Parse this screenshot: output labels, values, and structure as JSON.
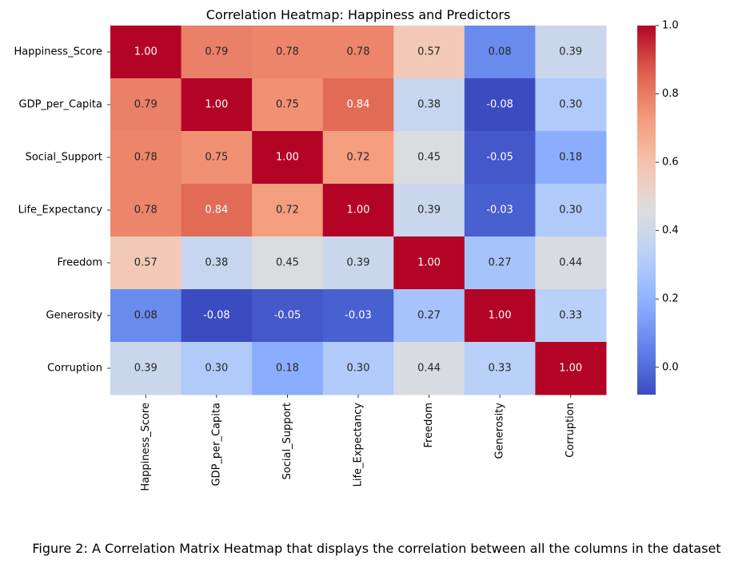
{
  "chart_data": {
    "type": "heatmap",
    "title": "Correlation Heatmap: Happiness and Predictors",
    "rows": [
      "Happiness_Score",
      "GDP_per_Capita",
      "Social_Support",
      "Life_Expectancy",
      "Freedom",
      "Generosity",
      "Corruption"
    ],
    "columns": [
      "Happiness_Score",
      "GDP_per_Capita",
      "Social_Support",
      "Life_Expectancy",
      "Freedom",
      "Generosity",
      "Corruption"
    ],
    "values": [
      [
        1.0,
        0.79,
        0.78,
        0.78,
        0.57,
        0.08,
        0.39
      ],
      [
        0.79,
        1.0,
        0.75,
        0.84,
        0.38,
        -0.08,
        0.3
      ],
      [
        0.78,
        0.75,
        1.0,
        0.72,
        0.45,
        -0.05,
        0.18
      ],
      [
        0.78,
        0.84,
        0.72,
        1.0,
        0.39,
        -0.03,
        0.3
      ],
      [
        0.57,
        0.38,
        0.45,
        0.39,
        1.0,
        0.27,
        0.44
      ],
      [
        0.08,
        -0.08,
        -0.05,
        -0.03,
        0.27,
        1.0,
        0.33
      ],
      [
        0.39,
        0.3,
        0.18,
        0.3,
        0.44,
        0.33,
        1.0
      ]
    ],
    "colormap": "coolwarm",
    "colorbar": {
      "vmin": -0.08,
      "vmax": 1.0,
      "ticks": [
        0.0,
        0.2,
        0.4,
        0.6,
        0.8,
        1.0
      ],
      "tick_labels": [
        "0.0",
        "0.2",
        "0.4",
        "0.6",
        "0.8",
        "1.0"
      ]
    },
    "annotation_format": "0.00"
  },
  "caption": "Figure 2: A Correlation Matrix Heatmap that displays the correlation between all the columns in the dataset"
}
